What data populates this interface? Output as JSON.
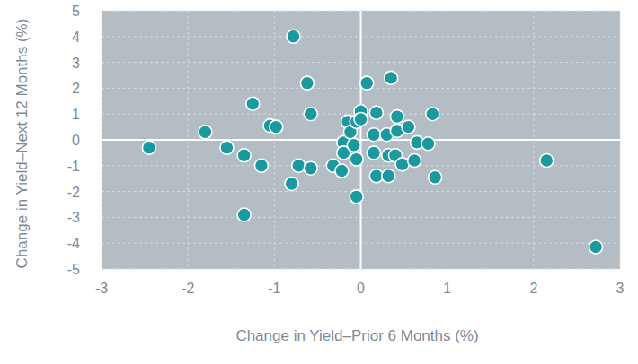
{
  "chart_data": {
    "type": "scatter",
    "x_label": "Change in Yield–Prior 6 Months (%)",
    "y_label": "Change in Yield–Next 12 Months (%)",
    "x": [
      -2.45,
      -1.8,
      -1.55,
      -1.35,
      -1.35,
      -1.25,
      -1.15,
      -1.05,
      -0.98,
      -0.78,
      -0.8,
      -0.72,
      -0.62,
      -0.58,
      -0.58,
      -0.32,
      -0.22,
      -0.2,
      -0.2,
      -0.15,
      -0.12,
      -0.08,
      -0.05,
      -0.05,
      -0.05,
      0.0,
      0.0,
      0.07,
      0.15,
      0.15,
      0.18,
      0.18,
      0.3,
      0.32,
      0.32,
      0.35,
      0.4,
      0.42,
      0.42,
      0.48,
      0.55,
      0.62,
      0.65,
      0.78,
      0.83,
      0.86,
      2.15,
      2.72
    ],
    "values": [
      -0.3,
      0.3,
      -0.3,
      -0.6,
      -2.9,
      1.4,
      -1.0,
      0.55,
      0.5,
      4.0,
      -1.7,
      -1.0,
      2.2,
      1.0,
      -1.1,
      -1.0,
      -1.2,
      -0.1,
      -0.5,
      0.7,
      0.3,
      -0.2,
      0.7,
      -0.75,
      -2.2,
      1.1,
      0.8,
      2.2,
      -0.5,
      0.2,
      1.05,
      -1.4,
      0.2,
      -0.6,
      -1.4,
      2.4,
      -0.6,
      0.9,
      0.35,
      -0.95,
      0.5,
      -0.8,
      -0.1,
      -0.15,
      1.0,
      -1.45,
      -0.8,
      -4.15
    ],
    "color": "#1a9aa0",
    "marker": "circle",
    "xlim": [
      -3,
      3
    ],
    "xticks": [
      -3,
      -2,
      -1,
      0,
      1,
      2,
      3
    ],
    "ylim": [
      -5,
      5
    ],
    "yticks": [
      -5,
      -4,
      -3,
      -2,
      -1,
      0,
      1,
      2,
      3,
      4,
      5
    ],
    "grid": true
  }
}
